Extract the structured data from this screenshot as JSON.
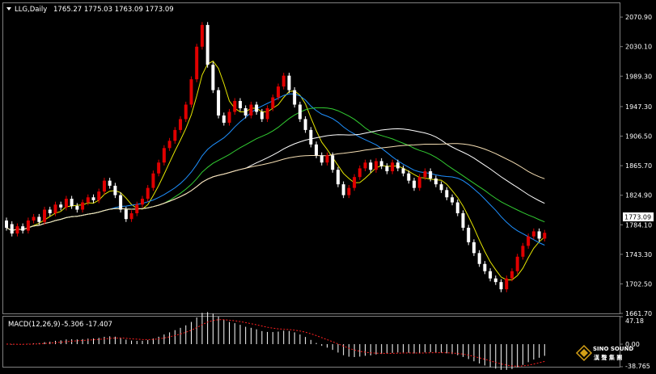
{
  "header": {
    "symbol_timeframe": "LLG,Daily",
    "ohlc": "1765.27 1775.03 1763.09 1773.09"
  },
  "macd_header": {
    "label": "MACD(12,26,9)",
    "values": "-5.306 -17.407"
  },
  "current_price_label": "1773.09",
  "watermark": {
    "line1": "SINO SOUND",
    "line2": "漢 聲 集 團"
  },
  "colors": {
    "background": "#000000",
    "axis": "#808080",
    "up_candle": "#e00000",
    "down_candle": "#ffffff",
    "ma_fast": "#e6e600",
    "ma_slow1": "#1e90ff",
    "ma_slow2": "#32cd32",
    "ma_slow3": "#ffffff",
    "ma_slow4": "#f5deb3",
    "macd_hist": "#ffffff",
    "macd_signal": "#ff2020"
  },
  "chart_data": [
    {
      "type": "candlestick",
      "title": "LLG,Daily",
      "ylim": [
        1661.7,
        2090.0
      ],
      "yticks": [
        2070.9,
        2030.1,
        1989.3,
        1947.3,
        1906.5,
        1865.7,
        1824.9,
        1784.1,
        1743.3,
        1702.5,
        1661.7
      ],
      "last_close": 1773.09,
      "series_description": "daily candles with moving averages",
      "candles": [
        [
          1790,
          1780
        ],
        [
          1785,
          1772
        ],
        [
          1772,
          1782
        ],
        [
          1782,
          1776
        ],
        [
          1776,
          1790
        ],
        [
          1790,
          1795
        ],
        [
          1795,
          1788
        ],
        [
          1788,
          1805
        ],
        [
          1805,
          1800
        ],
        [
          1800,
          1812
        ],
        [
          1812,
          1808
        ],
        [
          1808,
          1820
        ],
        [
          1820,
          1810
        ],
        [
          1810,
          1805
        ],
        [
          1805,
          1815
        ],
        [
          1815,
          1822
        ],
        [
          1822,
          1818
        ],
        [
          1818,
          1830
        ],
        [
          1830,
          1845
        ],
        [
          1845,
          1838
        ],
        [
          1838,
          1825
        ],
        [
          1825,
          1805
        ],
        [
          1805,
          1792
        ],
        [
          1792,
          1800
        ],
        [
          1800,
          1812
        ],
        [
          1812,
          1820
        ],
        [
          1820,
          1835
        ],
        [
          1835,
          1855
        ],
        [
          1855,
          1870
        ],
        [
          1870,
          1890
        ],
        [
          1890,
          1900
        ],
        [
          1900,
          1915
        ],
        [
          1915,
          1930
        ],
        [
          1930,
          1950
        ],
        [
          1950,
          1985
        ],
        [
          1985,
          2030
        ],
        [
          2030,
          2060
        ],
        [
          2060,
          2005
        ],
        [
          2005,
          1970
        ],
        [
          1970,
          1935
        ],
        [
          1935,
          1925
        ],
        [
          1925,
          1940
        ],
        [
          1940,
          1955
        ],
        [
          1955,
          1945
        ],
        [
          1945,
          1935
        ],
        [
          1935,
          1950
        ],
        [
          1950,
          1940
        ],
        [
          1940,
          1930
        ],
        [
          1930,
          1945
        ],
        [
          1945,
          1960
        ],
        [
          1960,
          1975
        ],
        [
          1975,
          1990
        ],
        [
          1990,
          1970
        ],
        [
          1970,
          1950
        ],
        [
          1950,
          1930
        ],
        [
          1930,
          1915
        ],
        [
          1915,
          1895
        ],
        [
          1895,
          1880
        ],
        [
          1880,
          1870
        ],
        [
          1870,
          1880
        ],
        [
          1880,
          1860
        ],
        [
          1860,
          1840
        ],
        [
          1840,
          1825
        ],
        [
          1825,
          1835
        ],
        [
          1835,
          1850
        ],
        [
          1850,
          1862
        ],
        [
          1862,
          1870
        ],
        [
          1870,
          1860
        ],
        [
          1860,
          1872
        ],
        [
          1872,
          1865
        ],
        [
          1865,
          1858
        ],
        [
          1858,
          1870
        ],
        [
          1870,
          1862
        ],
        [
          1862,
          1855
        ],
        [
          1855,
          1845
        ],
        [
          1845,
          1835
        ],
        [
          1835,
          1850
        ],
        [
          1850,
          1858
        ],
        [
          1858,
          1848
        ],
        [
          1848,
          1840
        ],
        [
          1840,
          1832
        ],
        [
          1832,
          1822
        ],
        [
          1822,
          1815
        ],
        [
          1815,
          1800
        ],
        [
          1800,
          1780
        ],
        [
          1780,
          1760
        ],
        [
          1760,
          1745
        ],
        [
          1745,
          1730
        ],
        [
          1730,
          1720
        ],
        [
          1720,
          1710
        ],
        [
          1710,
          1705
        ],
        [
          1705,
          1695
        ],
        [
          1695,
          1710
        ],
        [
          1710,
          1720
        ],
        [
          1720,
          1740
        ],
        [
          1740,
          1755
        ],
        [
          1755,
          1768
        ],
        [
          1768,
          1775
        ],
        [
          1775,
          1765
        ],
        [
          1765,
          1773
        ]
      ],
      "macd_ylim": [
        -38.765,
        47.18
      ],
      "macd_yticks": [
        47.18,
        0.0,
        -38.765
      ]
    }
  ]
}
